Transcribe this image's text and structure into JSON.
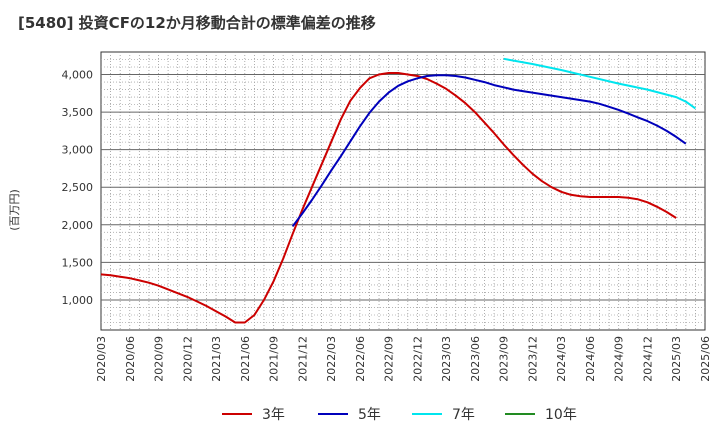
{
  "header": {
    "title": "[5480]  投資CFの12か月移動合計の標準偏差の推移"
  },
  "chart_data": {
    "type": "line",
    "ylabel": "(百万円)",
    "ylim": [
      600,
      4300
    ],
    "yticks": [
      1000,
      1500,
      2000,
      2500,
      3000,
      3500,
      4000
    ],
    "ytick_labels": [
      "1,000",
      "1,500",
      "2,000",
      "2,500",
      "3,000",
      "3,500",
      "4,000"
    ],
    "x_start": "2020/03",
    "x_end": "2025/06",
    "x_tick_labels": [
      "2020/03",
      "2020/06",
      "2020/09",
      "2020/12",
      "2021/03",
      "2021/06",
      "2021/09",
      "2021/12",
      "2022/03",
      "2022/06",
      "2022/09",
      "2022/12",
      "2023/03",
      "2023/06",
      "2023/09",
      "2023/12",
      "2024/03",
      "2024/06",
      "2024/09",
      "2024/12",
      "2025/03",
      "2025/06"
    ],
    "grid": true,
    "legend": "bottom",
    "series": [
      {
        "name": "3年",
        "color": "#cc0000",
        "points": [
          [
            "2020/03",
            1340
          ],
          [
            "2020/04",
            1330
          ],
          [
            "2020/05",
            1310
          ],
          [
            "2020/06",
            1290
          ],
          [
            "2020/07",
            1260
          ],
          [
            "2020/08",
            1230
          ],
          [
            "2020/09",
            1190
          ],
          [
            "2020/10",
            1140
          ],
          [
            "2020/11",
            1090
          ],
          [
            "2020/12",
            1040
          ],
          [
            "2021/01",
            980
          ],
          [
            "2021/02",
            920
          ],
          [
            "2021/03",
            850
          ],
          [
            "2021/04",
            780
          ],
          [
            "2021/05",
            700
          ],
          [
            "2021/06",
            700
          ],
          [
            "2021/07",
            800
          ],
          [
            "2021/08",
            1000
          ],
          [
            "2021/09",
            1250
          ],
          [
            "2021/10",
            1550
          ],
          [
            "2021/11",
            1880
          ],
          [
            "2021/12",
            2200
          ],
          [
            "2022/01",
            2500
          ],
          [
            "2022/02",
            2800
          ],
          [
            "2022/03",
            3100
          ],
          [
            "2022/04",
            3400
          ],
          [
            "2022/05",
            3650
          ],
          [
            "2022/06",
            3820
          ],
          [
            "2022/07",
            3950
          ],
          [
            "2022/08",
            4000
          ],
          [
            "2022/09",
            4020
          ],
          [
            "2022/10",
            4020
          ],
          [
            "2022/11",
            4000
          ],
          [
            "2022/12",
            3980
          ],
          [
            "2023/01",
            3940
          ],
          [
            "2023/02",
            3880
          ],
          [
            "2023/03",
            3810
          ],
          [
            "2023/04",
            3720
          ],
          [
            "2023/05",
            3620
          ],
          [
            "2023/06",
            3500
          ],
          [
            "2023/07",
            3360
          ],
          [
            "2023/08",
            3220
          ],
          [
            "2023/09",
            3070
          ],
          [
            "2023/10",
            2930
          ],
          [
            "2023/11",
            2800
          ],
          [
            "2023/12",
            2680
          ],
          [
            "2024/01",
            2580
          ],
          [
            "2024/02",
            2500
          ],
          [
            "2024/03",
            2440
          ],
          [
            "2024/04",
            2400
          ],
          [
            "2024/05",
            2380
          ],
          [
            "2024/06",
            2370
          ],
          [
            "2024/07",
            2370
          ],
          [
            "2024/08",
            2370
          ],
          [
            "2024/09",
            2370
          ],
          [
            "2024/10",
            2360
          ],
          [
            "2024/11",
            2340
          ],
          [
            "2024/12",
            2300
          ],
          [
            "2025/01",
            2240
          ],
          [
            "2025/02",
            2170
          ],
          [
            "2025/03",
            2090
          ]
        ]
      },
      {
        "name": "5年",
        "color": "#0000bb",
        "points": [
          [
            "2021/11",
            1980
          ],
          [
            "2021/12",
            2150
          ],
          [
            "2022/01",
            2330
          ],
          [
            "2022/02",
            2520
          ],
          [
            "2022/03",
            2720
          ],
          [
            "2022/04",
            2910
          ],
          [
            "2022/05",
            3110
          ],
          [
            "2022/06",
            3310
          ],
          [
            "2022/07",
            3490
          ],
          [
            "2022/08",
            3640
          ],
          [
            "2022/09",
            3760
          ],
          [
            "2022/10",
            3850
          ],
          [
            "2022/11",
            3910
          ],
          [
            "2022/12",
            3950
          ],
          [
            "2023/01",
            3980
          ],
          [
            "2023/02",
            3990
          ],
          [
            "2023/03",
            3990
          ],
          [
            "2023/04",
            3980
          ],
          [
            "2023/05",
            3960
          ],
          [
            "2023/06",
            3930
          ],
          [
            "2023/07",
            3900
          ],
          [
            "2023/08",
            3860
          ],
          [
            "2023/09",
            3830
          ],
          [
            "2023/10",
            3800
          ],
          [
            "2023/11",
            3780
          ],
          [
            "2023/12",
            3760
          ],
          [
            "2024/01",
            3740
          ],
          [
            "2024/02",
            3720
          ],
          [
            "2024/03",
            3700
          ],
          [
            "2024/04",
            3680
          ],
          [
            "2024/05",
            3660
          ],
          [
            "2024/06",
            3640
          ],
          [
            "2024/07",
            3610
          ],
          [
            "2024/08",
            3570
          ],
          [
            "2024/09",
            3530
          ],
          [
            "2024/10",
            3480
          ],
          [
            "2024/11",
            3430
          ],
          [
            "2024/12",
            3380
          ],
          [
            "2025/01",
            3320
          ],
          [
            "2025/02",
            3250
          ],
          [
            "2025/03",
            3170
          ],
          [
            "2025/04",
            3080
          ]
        ]
      },
      {
        "name": "7年",
        "color": "#00e5ee",
        "points": [
          [
            "2023/09",
            4210
          ],
          [
            "2023/12",
            4140
          ],
          [
            "2024/03",
            4060
          ],
          [
            "2024/06",
            3970
          ],
          [
            "2024/09",
            3880
          ],
          [
            "2024/12",
            3800
          ],
          [
            "2025/03",
            3700
          ],
          [
            "2025/04",
            3640
          ],
          [
            "2025/05",
            3550
          ]
        ]
      },
      {
        "name": "10年",
        "color": "#228b22",
        "points": []
      }
    ]
  }
}
